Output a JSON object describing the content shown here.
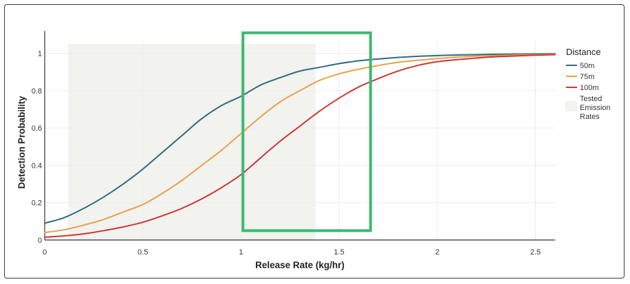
{
  "chart_data": {
    "type": "line",
    "xlabel": "Release Rate (kg/hr)",
    "ylabel": "Detection Probability",
    "xlim": [
      0,
      2.6
    ],
    "ylim": [
      0,
      1.05
    ],
    "x_ticks": [
      0,
      0.5,
      1,
      1.5,
      2,
      2.5
    ],
    "x_tick_labels": [
      "0",
      "0.5",
      "1",
      "1.5",
      "2",
      "2.5"
    ],
    "y_ticks": [
      0,
      0.2,
      0.4,
      0.6,
      0.8,
      1
    ],
    "y_tick_labels": [
      "0",
      "0.2",
      "0.4",
      "0.6",
      "0.8",
      "1"
    ],
    "grid": true,
    "legend": {
      "title": "Distance",
      "placement": "right",
      "shaded_label": [
        "Tested",
        "Emission",
        "Rates"
      ]
    },
    "x": [
      0,
      0.1,
      0.2,
      0.3,
      0.4,
      0.5,
      0.6,
      0.7,
      0.8,
      0.9,
      1.0,
      1.1,
      1.2,
      1.3,
      1.4,
      1.5,
      1.6,
      1.7,
      1.8,
      1.9,
      2.0,
      2.1,
      2.2,
      2.3,
      2.4,
      2.5,
      2.6
    ],
    "series": [
      {
        "name": "50m",
        "color": "#2e6a80",
        "values": [
          0.09,
          0.12,
          0.17,
          0.23,
          0.3,
          0.38,
          0.47,
          0.56,
          0.65,
          0.72,
          0.77,
          0.83,
          0.87,
          0.905,
          0.925,
          0.945,
          0.96,
          0.97,
          0.978,
          0.984,
          0.988,
          0.991,
          0.993,
          0.995,
          0.996,
          0.997,
          0.998
        ]
      },
      {
        "name": "75m",
        "color": "#e8a04c",
        "values": [
          0.04,
          0.055,
          0.08,
          0.11,
          0.15,
          0.19,
          0.25,
          0.32,
          0.4,
          0.48,
          0.57,
          0.66,
          0.74,
          0.8,
          0.855,
          0.89,
          0.915,
          0.935,
          0.952,
          0.963,
          0.972,
          0.98,
          0.985,
          0.988,
          0.991,
          0.993,
          0.995
        ]
      },
      {
        "name": "100m",
        "color": "#cc3535",
        "values": [
          0.015,
          0.022,
          0.033,
          0.05,
          0.07,
          0.095,
          0.13,
          0.17,
          0.22,
          0.28,
          0.35,
          0.44,
          0.53,
          0.61,
          0.69,
          0.76,
          0.82,
          0.865,
          0.905,
          0.935,
          0.955,
          0.966,
          0.975,
          0.982,
          0.986,
          0.99,
          0.993
        ]
      }
    ],
    "shaded_region": {
      "name": "Tested Emission Rates",
      "x_range": [
        0.12,
        1.38
      ],
      "y_range": [
        0,
        1.05
      ],
      "color": "#f2f2ef"
    },
    "highlight_box": {
      "x_range": [
        1.01,
        1.66
      ],
      "y_range": [
        0.05,
        1.11
      ],
      "color": "#3cb96e"
    }
  }
}
